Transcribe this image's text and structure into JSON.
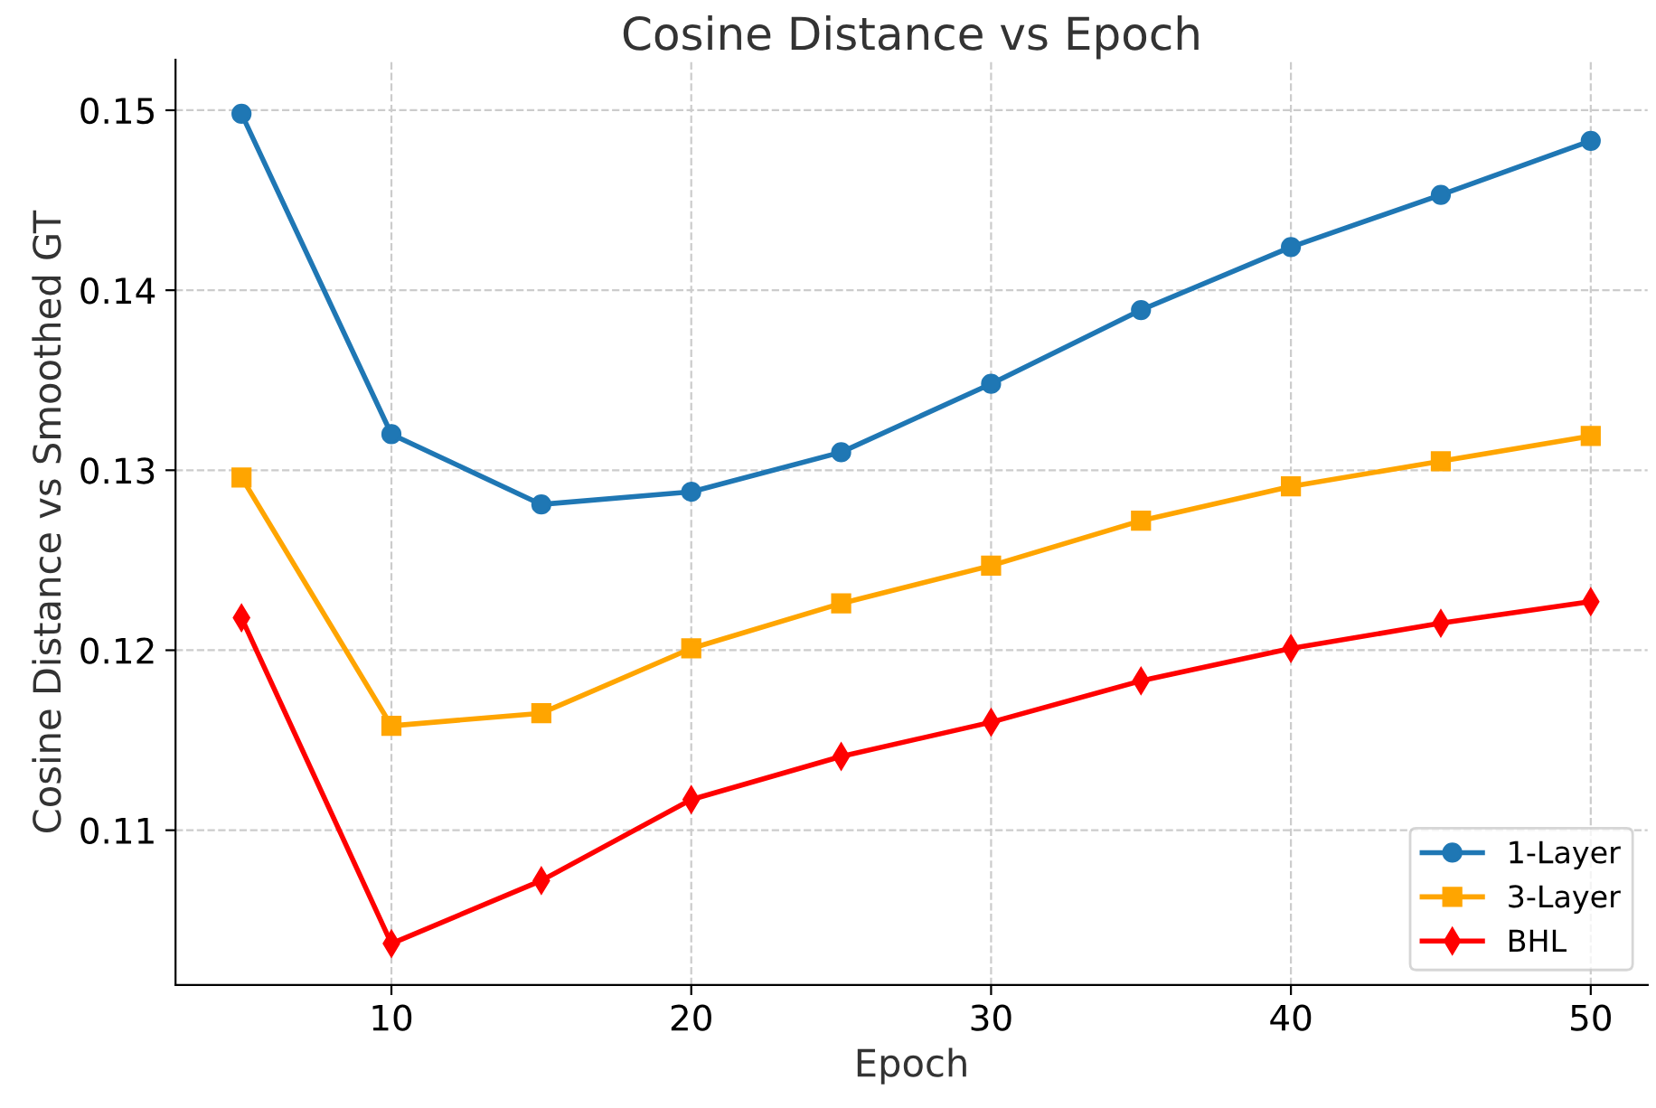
{
  "chart_data": {
    "type": "line",
    "title": "Cosine Distance vs Epoch",
    "xlabel": "Epoch",
    "ylabel": "Cosine Distance vs Smoothed GT",
    "x": [
      5,
      10,
      15,
      20,
      25,
      30,
      35,
      40,
      45,
      50
    ],
    "series": [
      {
        "name": "1-Layer",
        "color": "#1f77b4",
        "marker": "circle",
        "values": [
          0.1498,
          0.132,
          0.1281,
          0.1288,
          0.131,
          0.1348,
          0.1389,
          0.1424,
          0.1453,
          0.1483
        ]
      },
      {
        "name": "3-Layer",
        "color": "#ffa500",
        "marker": "square",
        "values": [
          0.1296,
          0.1158,
          0.1165,
          0.1201,
          0.1226,
          0.1247,
          0.1272,
          0.1291,
          0.1305,
          0.1319
        ]
      },
      {
        "name": "BHL",
        "color": "#ff0000",
        "marker": "diamond",
        "values": [
          0.1218,
          0.1037,
          0.1072,
          0.1117,
          0.1141,
          0.116,
          0.1183,
          0.1201,
          0.1215,
          0.1227
        ]
      }
    ],
    "xlim": [
      2.8,
      51.9
    ],
    "xticks": [
      10,
      20,
      30,
      40,
      50
    ],
    "ylim": [
      0.1014,
      0.1528
    ],
    "yticks": [
      0.11,
      0.12,
      0.13,
      0.14,
      0.15
    ],
    "grid": true,
    "legend": "bottom right",
    "line_style": "solid"
  }
}
